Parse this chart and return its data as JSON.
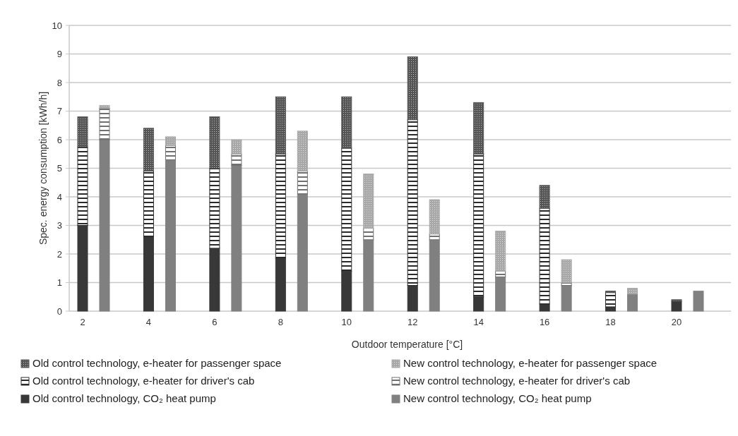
{
  "chart_data": {
    "type": "bar",
    "stacked": true,
    "xlabel": "Outdoor temperature [°C]",
    "ylabel": "Spec. energy consumption [kWh/h]",
    "categories": [
      "2",
      null,
      "4",
      null,
      "6",
      null,
      "8",
      null,
      "10",
      null,
      "12",
      null,
      "14",
      null,
      "16",
      null,
      "18",
      null,
      "20",
      null
    ],
    "ylim": [
      0,
      10
    ],
    "yticks": [
      0,
      1,
      2,
      3,
      4,
      5,
      6,
      7,
      8,
      9,
      10
    ],
    "grid": "y",
    "legend": "bottom",
    "series": [
      {
        "name": "Old control technology, CO₂ heat pump",
        "color": "#383838",
        "values": [
          3.0,
          null,
          2.6,
          null,
          2.2,
          null,
          1.85,
          null,
          1.4,
          null,
          0.9,
          null,
          0.5,
          null,
          0.25,
          null,
          0.15,
          null,
          0.35,
          null
        ]
      },
      {
        "name": "Old control technology, e-heater for driver's cab",
        "color": "#2a2a2a",
        "values": [
          2.75,
          null,
          2.3,
          null,
          2.8,
          null,
          3.65,
          null,
          4.3,
          null,
          5.8,
          null,
          5.0,
          null,
          3.35,
          null,
          0.5,
          null,
          0,
          null
        ]
      },
      {
        "name": "Old control technology, e-heater for passenger space",
        "color": "#555555",
        "values": [
          1.05,
          null,
          1.5,
          null,
          1.8,
          null,
          2.0,
          null,
          1.8,
          null,
          2.2,
          null,
          1.8,
          null,
          0.8,
          null,
          0.05,
          null,
          0.05,
          null
        ]
      },
      {
        "name": "New control technology, CO₂ heat pump",
        "color": "#808080",
        "values": [
          null,
          6.0,
          null,
          5.3,
          null,
          5.1,
          null,
          4.1,
          null,
          2.5,
          null,
          2.5,
          null,
          1.2,
          null,
          0.9,
          null,
          0.6,
          null,
          0.7
        ]
      },
      {
        "name": "New control technology, e-heater for driver's cab",
        "color": "#707070",
        "values": [
          null,
          1.1,
          null,
          0.5,
          null,
          0.4,
          null,
          0.8,
          null,
          0.4,
          null,
          0.2,
          null,
          0.2,
          null,
          0.1,
          null,
          0,
          null,
          0
        ]
      },
      {
        "name": "New control technology, e-heater for passenger space",
        "color": "#a8a8a8",
        "values": [
          null,
          0.1,
          null,
          0.3,
          null,
          0.5,
          null,
          1.4,
          null,
          1.9,
          null,
          1.2,
          null,
          1.4,
          null,
          0.8,
          null,
          0.2,
          null,
          0
        ]
      }
    ]
  }
}
